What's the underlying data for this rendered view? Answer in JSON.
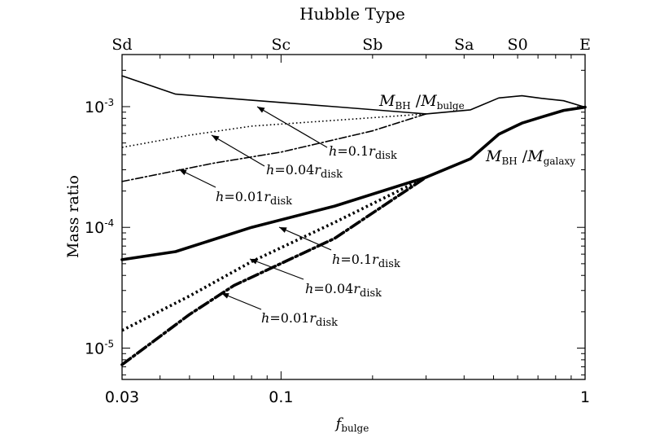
{
  "chart_data": {
    "type": "line",
    "title": "Hubble Type",
    "xlabel": "f",
    "xlabel_sub": "bulge",
    "ylabel": "Mass ratio",
    "x_scale": "log",
    "y_scale": "log",
    "xlim": [
      0.03,
      1
    ],
    "ylim": [
      5.5e-06,
      0.0027
    ],
    "x_ticks": [
      {
        "value": 0.03,
        "label": "0.03"
      },
      {
        "value": 0.1,
        "label": "0.1"
      },
      {
        "value": 1,
        "label": "1"
      }
    ],
    "y_ticks": [
      {
        "value": 1e-05,
        "base": "10",
        "exp": "-5"
      },
      {
        "value": 0.0001,
        "base": "10",
        "exp": "-4"
      },
      {
        "value": 0.001,
        "base": "10",
        "exp": "-3"
      }
    ],
    "top_axis": [
      {
        "value": 0.03,
        "label": "Sd"
      },
      {
        "value": 0.1,
        "label": "Sc"
      },
      {
        "value": 0.2,
        "label": "Sb"
      },
      {
        "value": 0.4,
        "label": "Sa"
      },
      {
        "value": 0.6,
        "label": "S0"
      },
      {
        "value": 1,
        "label": "E"
      }
    ],
    "grid": false,
    "series": [
      {
        "group": "bulge",
        "style": "solid",
        "weight": "thin",
        "x": [
          0.03,
          0.045,
          0.08,
          0.15,
          0.3,
          0.42,
          0.52,
          0.62,
          0.72,
          0.85,
          1.0
        ],
        "y": [
          0.0018,
          0.00127,
          0.00113,
          0.001,
          0.00087,
          0.00094,
          0.00118,
          0.00123,
          0.00117,
          0.00112,
          0.00099
        ]
      },
      {
        "group": "bulge",
        "style": "dotted",
        "weight": "thin",
        "x": [
          0.03,
          0.05,
          0.08,
          0.15,
          0.3
        ],
        "y": [
          0.00046,
          0.00058,
          0.00069,
          0.00077,
          0.00087
        ]
      },
      {
        "group": "bulge",
        "style": "dashdot",
        "weight": "thin",
        "x": [
          0.03,
          0.06,
          0.1,
          0.2,
          0.3
        ],
        "y": [
          0.00024,
          0.00034,
          0.00042,
          0.00063,
          0.00087
        ]
      },
      {
        "group": "galaxy",
        "style": "solid",
        "weight": "thick",
        "x": [
          0.03,
          0.045,
          0.08,
          0.15,
          0.3,
          0.42,
          0.52,
          0.62,
          0.72,
          0.85,
          1.0
        ],
        "y": [
          5.4e-05,
          6.3e-05,
          0.0001,
          0.00015,
          0.00026,
          0.00037,
          0.00059,
          0.00073,
          0.00082,
          0.00093,
          0.00099
        ]
      },
      {
        "group": "galaxy",
        "style": "dotted",
        "weight": "thick",
        "x": [
          0.03,
          0.05,
          0.08,
          0.15,
          0.3
        ],
        "y": [
          1.4e-05,
          2.7e-05,
          5.2e-05,
          0.00011,
          0.00026
        ]
      },
      {
        "group": "galaxy",
        "style": "dashdot",
        "weight": "thick",
        "x": [
          0.03,
          0.05,
          0.07,
          0.15,
          0.3
        ],
        "y": [
          7.3e-06,
          1.9e-05,
          3.3e-05,
          8.1e-05,
          0.00026
        ]
      }
    ],
    "annotations": {
      "bulge_curve": {
        "num": "M",
        "num_sub": "BH",
        "sep": " /",
        "den": "M",
        "den_sub": "bulge"
      },
      "galaxy_curve": {
        "num": "M",
        "num_sub": "BH",
        "sep": " /",
        "den": "M",
        "den_sub": "galaxy"
      },
      "h_labels": [
        {
          "group": "bulge",
          "prefix": "h",
          "eq": "=0.1",
          "r": "r",
          "sub": "disk"
        },
        {
          "group": "bulge",
          "prefix": "h",
          "eq": "=0.04",
          "r": "r",
          "sub": "disk"
        },
        {
          "group": "bulge",
          "prefix": "h",
          "eq": "=0.01",
          "r": "r",
          "sub": "disk"
        },
        {
          "group": "galaxy",
          "prefix": "h",
          "eq": "=0.1",
          "r": "r",
          "sub": "disk"
        },
        {
          "group": "galaxy",
          "prefix": "h",
          "eq": "=0.04",
          "r": "r",
          "sub": "disk"
        },
        {
          "group": "galaxy",
          "prefix": "h",
          "eq": "=0.01",
          "r": "r",
          "sub": "disk"
        }
      ]
    }
  }
}
